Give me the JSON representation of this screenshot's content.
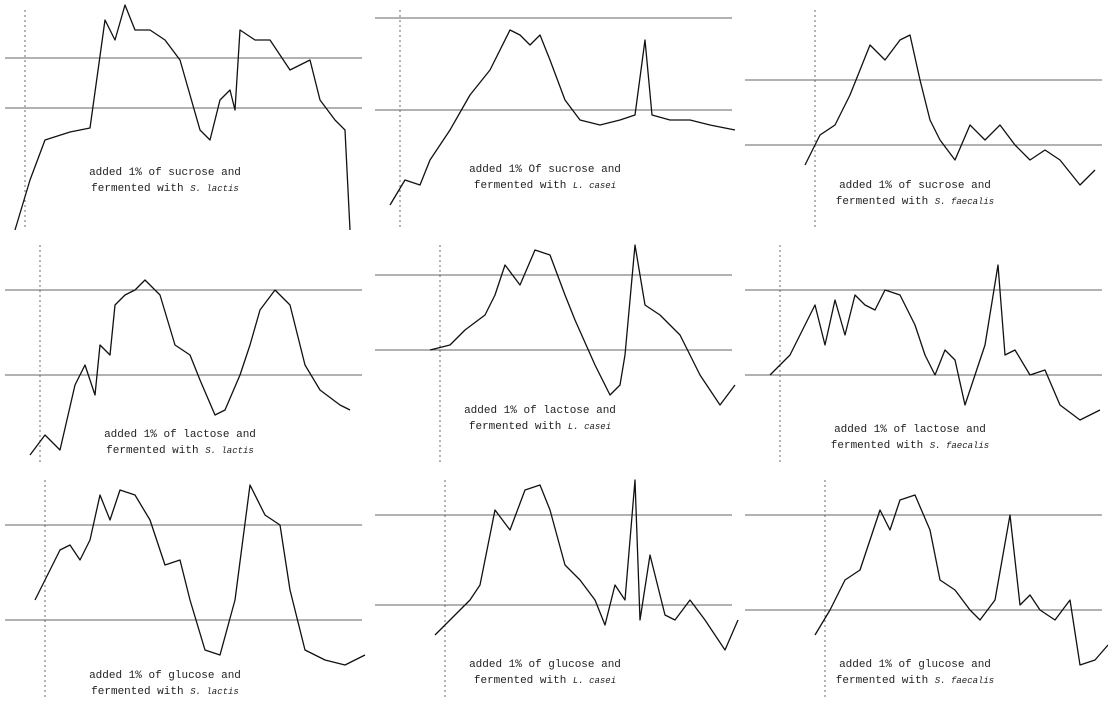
{
  "panels": [
    {
      "line1": "added 1% of sucrose and",
      "line2": "fermented with",
      "species": "S. lactis"
    },
    {
      "line1": "added 1% Of sucrose and",
      "line2": "fermented with",
      "species": "L. casei"
    },
    {
      "line1": "added 1% of sucrose and",
      "line2": "fermented with",
      "species": "S. faecalis"
    },
    {
      "line1": "added 1% of lactose and",
      "line2": "fermented with",
      "species": "S. lactis"
    },
    {
      "line1": "added 1% of lactose and",
      "line2": "fermented with",
      "species": "L. casei"
    },
    {
      "line1": "added 1% of lactose and",
      "line2": "fermented with",
      "species": "S. faecalis"
    },
    {
      "line1": "added 1% of glucose and",
      "line2": "fermented with",
      "species": "S. lactis"
    },
    {
      "line1": "added 1% of glucose and",
      "line2": "fermented with",
      "species": "L. casei"
    },
    {
      "line1": "added 1% of glucose and",
      "line2": "fermented with",
      "species": "S. faecalis"
    }
  ]
}
